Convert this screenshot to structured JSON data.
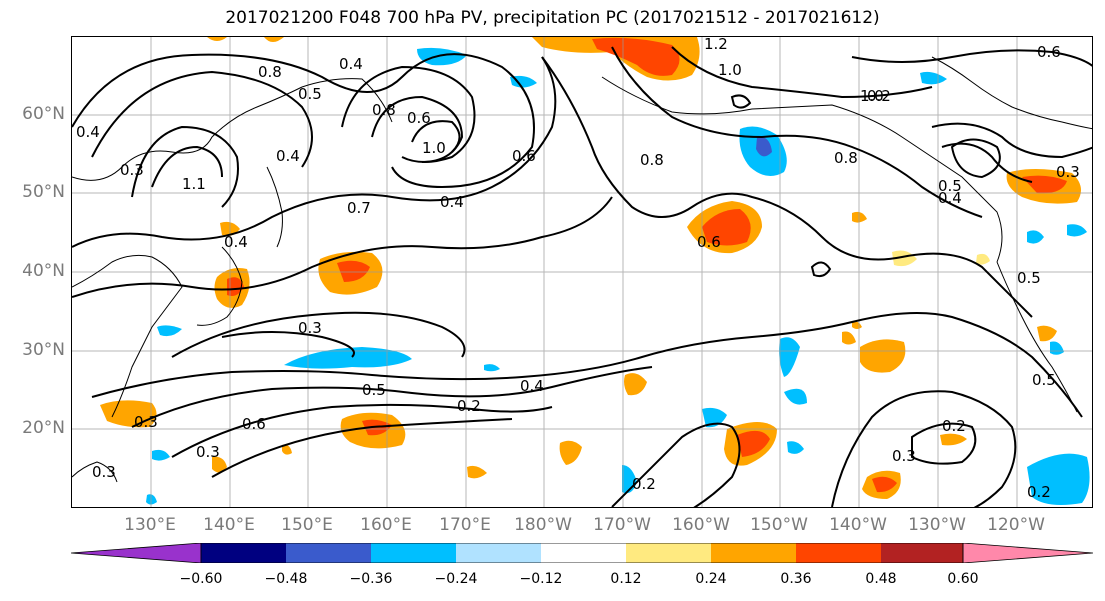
{
  "title": "2017021200 F048 700 hPa PV, precipitation PC (2017021512 - 2017021612)",
  "lat_labels": [
    "60°N",
    "50°N",
    "40°N",
    "30°N",
    "20°N"
  ],
  "lon_labels": [
    "130°E",
    "140°E",
    "150°E",
    "160°E",
    "170°E",
    "180°W",
    "170°W",
    "160°W",
    "150°W",
    "140°W",
    "130°W",
    "120°W"
  ],
  "colorbar": {
    "ticks": [
      "−0.60",
      "−0.48",
      "−0.36",
      "−0.24",
      "−0.12",
      "0.12",
      "0.24",
      "0.36",
      "0.48",
      "0.60"
    ],
    "colors": [
      "#9932cc",
      "#000080",
      "#3a5bcc",
      "#00bfff",
      "#b0e2ff",
      "#ffffff",
      "#ffea80",
      "#ffa500",
      "#ff4500",
      "#b22222",
      "#ff88aa"
    ]
  },
  "contour_labels": [
    "0.4",
    "0.3",
    "0.8",
    "0.5",
    "0.4",
    "0.8",
    "0.6",
    "0.4",
    "1.0",
    "0.4",
    "0.7",
    "1.2",
    "1.0",
    "0.8",
    "0.6",
    "0.4",
    "0.8",
    "1.0",
    "0.3",
    "0.5",
    "0.4",
    "0.5",
    "0.6",
    "0.3",
    "0.3",
    "0.5",
    "0.4",
    "0.2",
    "0.6",
    "0.3",
    "0.3",
    "0.2",
    "0.3",
    "0.2",
    "0.5",
    "0.6",
    "1.1",
    "0.2",
    "0.2"
  ]
}
